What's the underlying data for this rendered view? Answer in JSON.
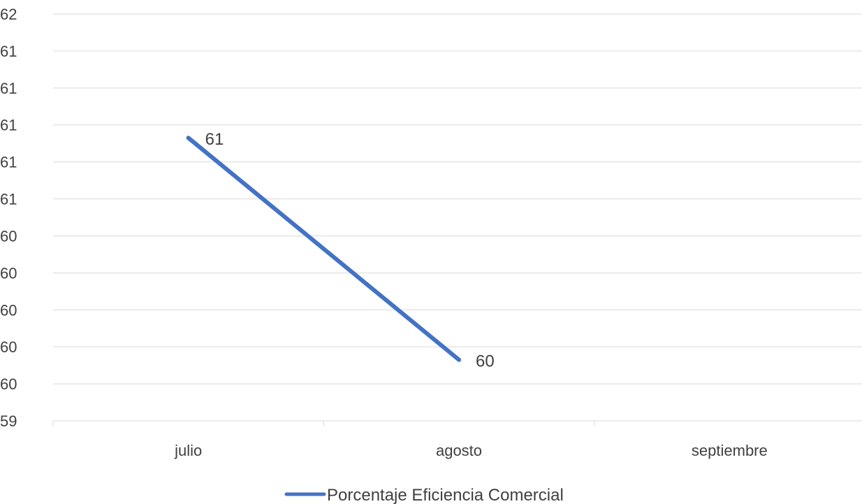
{
  "chart_data": {
    "type": "line",
    "categories": [
      "julio",
      "agosto",
      "septiembre"
    ],
    "series": [
      {
        "name": "Porcentaje Eficiencia Comercial",
        "values": [
          60.93,
          59.73,
          null
        ],
        "labels": [
          "61",
          "60",
          ""
        ],
        "color": "#4472C4"
      }
    ],
    "y_ticks": [
      {
        "value": 59.4,
        "label": "59"
      },
      {
        "value": 59.6,
        "label": "60"
      },
      {
        "value": 59.8,
        "label": "60"
      },
      {
        "value": 60.0,
        "label": "60"
      },
      {
        "value": 60.2,
        "label": "60"
      },
      {
        "value": 60.4,
        "label": "60"
      },
      {
        "value": 60.6,
        "label": "61"
      },
      {
        "value": 60.8,
        "label": "61"
      },
      {
        "value": 61.0,
        "label": "61"
      },
      {
        "value": 61.2,
        "label": "61"
      },
      {
        "value": 61.4,
        "label": "61"
      },
      {
        "value": 61.6,
        "label": "62"
      }
    ],
    "ylim": [
      59.4,
      61.6
    ],
    "grid": true,
    "legend": "bottom"
  }
}
